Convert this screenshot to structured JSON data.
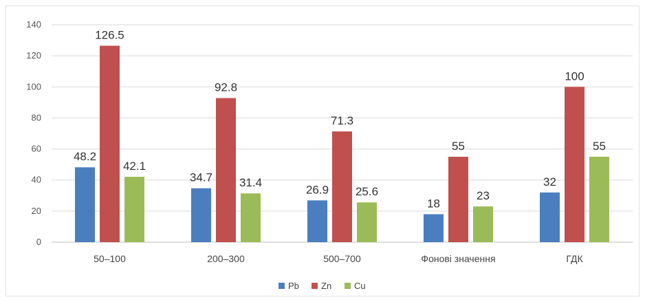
{
  "chart_data": {
    "type": "bar",
    "categories": [
      "50–100",
      "200–300",
      "500–700",
      "Фонові значення",
      "ГДК"
    ],
    "series": [
      {
        "name": "Pb",
        "color": "#4a7ebf",
        "values": [
          48.2,
          34.7,
          26.9,
          18,
          32
        ]
      },
      {
        "name": "Zn",
        "color": "#c0504d",
        "values": [
          126.5,
          92.8,
          71.3,
          55,
          100
        ]
      },
      {
        "name": "Cu",
        "color": "#9bbb59",
        "values": [
          42.1,
          31.4,
          25.6,
          23,
          55
        ]
      }
    ],
    "data_labels": [
      [
        "48.2",
        "126.5",
        "42.1"
      ],
      [
        "34.7",
        "92.8",
        "31.4"
      ],
      [
        "26.9",
        "71.3",
        "25.6"
      ],
      [
        "18",
        "55",
        "23"
      ],
      [
        "32",
        "100",
        "55"
      ]
    ],
    "yticks": [
      "0",
      "20",
      "40",
      "60",
      "80",
      "100",
      "120",
      "140"
    ],
    "ylim": [
      0,
      140
    ],
    "grid": true,
    "legend": "bottom",
    "title": "",
    "xlabel": "",
    "ylabel": ""
  }
}
